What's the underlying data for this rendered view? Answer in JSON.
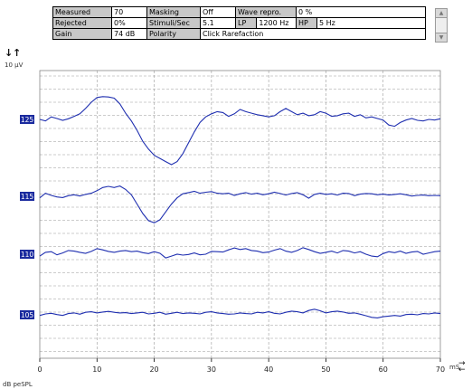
{
  "params": {
    "measured_label": "Measured",
    "measured_value": "70",
    "rejected_label": "Rejected",
    "rejected_value": "0%",
    "gain_label": "Gain",
    "gain_value": "74 dB",
    "masking_label": "Masking",
    "masking_value": "Off",
    "stimuli_label": "Stimuli/Sec",
    "stimuli_value": "5.1",
    "polarity_label": "Polarity",
    "polarity_value": "Click Rarefaction",
    "wave_label": "Wave repro.",
    "wave_value": "0 %",
    "lp_label": "LP",
    "lp_value": "1200 Hz",
    "hp_label": "HP",
    "hp_value": "5 Hz"
  },
  "scrollbar": {
    "up_icon": "scroll-up-arrow",
    "down_icon": "scroll-down-arrow"
  },
  "controls": {
    "scale_down_icon": "↓",
    "scale_up_icon": "↑"
  },
  "y_axis": {
    "scale_label": "10 µV"
  },
  "x_axis": {
    "unit_label": "mS",
    "db_label": "dB peSPL"
  },
  "chart_data": {
    "type": "line",
    "x_ticks": [
      0,
      10,
      20,
      30,
      40,
      50,
      60,
      70
    ],
    "x_tick_labels": [
      "0",
      "10",
      "20",
      "30",
      "40",
      "50",
      "60",
      "70"
    ],
    "xlim": [
      0,
      70
    ],
    "x_unit": "mS",
    "y_scale": "10 µV",
    "grid": true,
    "colors": {
      "trace": "#1f2fb0",
      "marker_bg": "#1a2a9e",
      "marker_text": "#ffffff",
      "grid": "#9a9a9a"
    },
    "series": [
      {
        "name": "125",
        "x": [
          0,
          1,
          2,
          3,
          4,
          5,
          6,
          7,
          8,
          9,
          10,
          11,
          12,
          13,
          14,
          15,
          16,
          17,
          18,
          19,
          20,
          21,
          22,
          23,
          24,
          25,
          26,
          27,
          28,
          29,
          30,
          31,
          32,
          33,
          34,
          35,
          36,
          37,
          38,
          39,
          40,
          41,
          42,
          43,
          44,
          45,
          46,
          47,
          48,
          49,
          50,
          51,
          52,
          53,
          54,
          55,
          56,
          57,
          58,
          59,
          60,
          61,
          62,
          63,
          64,
          65,
          66,
          67,
          68,
          69,
          70
        ],
        "y": [
          0.0,
          -0.5,
          0.8,
          0.3,
          -0.3,
          0.2,
          1.0,
          1.8,
          3.5,
          5.5,
          7.0,
          7.3,
          7.2,
          6.8,
          5.0,
          2.0,
          -0.5,
          -3.5,
          -7.0,
          -9.5,
          -11.5,
          -12.5,
          -13.5,
          -14.5,
          -13.5,
          -11.0,
          -7.5,
          -4.0,
          -1.0,
          0.8,
          1.8,
          2.5,
          2.2,
          1.0,
          1.8,
          3.2,
          2.5,
          2.0,
          1.5,
          1.2,
          0.8,
          1.2,
          2.5,
          3.5,
          2.5,
          1.5,
          2.0,
          1.2,
          1.5,
          2.5,
          2.0,
          1.0,
          1.2,
          1.8,
          2.0,
          1.0,
          1.5,
          0.5,
          0.8,
          0.3,
          -0.2,
          -1.8,
          -2.2,
          -1.0,
          -0.2,
          0.3,
          -0.3,
          -0.5,
          0.0,
          -0.2,
          0.2
        ]
      },
      {
        "name": "115",
        "x": [
          0,
          1,
          2,
          3,
          4,
          5,
          6,
          7,
          8,
          9,
          10,
          11,
          12,
          13,
          14,
          15,
          16,
          17,
          18,
          19,
          20,
          21,
          22,
          23,
          24,
          25,
          26,
          27,
          28,
          29,
          30,
          31,
          32,
          33,
          34,
          35,
          36,
          37,
          38,
          39,
          40,
          41,
          42,
          43,
          44,
          45,
          46,
          47,
          48,
          49,
          50,
          51,
          52,
          53,
          54,
          55,
          56,
          57,
          58,
          59,
          60,
          61,
          62,
          63,
          64,
          65,
          66,
          67,
          68,
          69,
          70
        ],
        "y": [
          -0.5,
          1.0,
          0.3,
          -0.2,
          -0.4,
          0.2,
          0.5,
          0.1,
          0.6,
          1.0,
          1.8,
          2.8,
          3.2,
          2.8,
          3.3,
          2.2,
          0.5,
          -2.5,
          -5.5,
          -7.8,
          -8.5,
          -7.5,
          -5.0,
          -2.5,
          -0.5,
          0.8,
          1.2,
          1.6,
          1.0,
          1.3,
          1.5,
          1.0,
          0.8,
          1.0,
          0.3,
          0.8,
          1.2,
          0.7,
          1.0,
          0.5,
          0.8,
          1.3,
          0.9,
          0.4,
          0.9,
          1.2,
          0.5,
          -0.6,
          0.6,
          1.0,
          0.6,
          0.8,
          0.4,
          1.0,
          0.9,
          0.2,
          0.7,
          0.9,
          0.8,
          0.5,
          0.7,
          0.4,
          0.6,
          0.8,
          0.5,
          0.1,
          0.3,
          0.4,
          0.2,
          0.3,
          0.2
        ]
      },
      {
        "name": "110",
        "x": [
          0,
          1,
          2,
          3,
          4,
          5,
          6,
          7,
          8,
          9,
          10,
          11,
          12,
          13,
          14,
          15,
          16,
          17,
          18,
          19,
          20,
          21,
          22,
          23,
          24,
          25,
          26,
          27,
          28,
          29,
          30,
          31,
          32,
          33,
          34,
          35,
          36,
          37,
          38,
          39,
          40,
          41,
          42,
          43,
          44,
          45,
          46,
          47,
          48,
          49,
          50,
          51,
          52,
          53,
          54,
          55,
          56,
          57,
          58,
          59,
          60,
          61,
          62,
          63,
          64,
          65,
          66,
          67,
          68,
          69,
          70
        ],
        "y": [
          -0.6,
          0.6,
          0.8,
          -0.2,
          0.4,
          1.2,
          1.0,
          0.6,
          0.3,
          0.9,
          1.8,
          1.4,
          0.9,
          0.6,
          1.0,
          1.2,
          0.8,
          1.0,
          0.5,
          0.2,
          0.8,
          0.3,
          -1.2,
          -0.6,
          0.0,
          -0.3,
          -0.1,
          0.4,
          -0.2,
          0.0,
          0.9,
          0.8,
          0.7,
          1.4,
          2.0,
          1.5,
          1.8,
          1.2,
          1.0,
          0.5,
          0.7,
          1.3,
          1.8,
          1.0,
          0.6,
          1.2,
          2.1,
          1.5,
          0.8,
          0.3,
          0.6,
          1.0,
          0.4,
          1.2,
          1.0,
          0.4,
          0.8,
          0.0,
          -0.6,
          -0.8,
          0.2,
          0.8,
          0.5,
          1.0,
          0.3,
          0.7,
          0.9,
          0.0,
          0.4,
          0.8,
          1.0
        ]
      },
      {
        "name": "105",
        "x": [
          0,
          1,
          2,
          3,
          4,
          5,
          6,
          7,
          8,
          9,
          10,
          11,
          12,
          13,
          14,
          15,
          16,
          17,
          18,
          19,
          20,
          21,
          22,
          23,
          24,
          25,
          26,
          27,
          28,
          29,
          30,
          31,
          32,
          33,
          34,
          35,
          36,
          37,
          38,
          39,
          40,
          41,
          42,
          43,
          44,
          45,
          46,
          47,
          48,
          49,
          50,
          51,
          52,
          53,
          54,
          55,
          56,
          57,
          58,
          59,
          60,
          61,
          62,
          63,
          64,
          65,
          66,
          67,
          68,
          69,
          70
        ],
        "y": [
          -0.2,
          0.3,
          0.5,
          0.1,
          -0.2,
          0.4,
          0.6,
          0.2,
          0.8,
          1.0,
          0.6,
          0.9,
          1.1,
          0.8,
          0.6,
          0.7,
          0.4,
          0.6,
          0.8,
          0.3,
          0.5,
          0.8,
          0.2,
          0.5,
          0.8,
          0.4,
          0.6,
          0.5,
          0.3,
          0.8,
          1.0,
          0.6,
          0.4,
          0.2,
          0.3,
          0.6,
          0.4,
          0.3,
          0.8,
          0.6,
          1.0,
          0.5,
          0.3,
          0.8,
          1.2,
          1.0,
          0.6,
          1.4,
          1.8,
          1.3,
          0.6,
          1.0,
          1.2,
          0.9,
          0.5,
          0.6,
          0.2,
          -0.3,
          -0.8,
          -1.0,
          -0.6,
          -0.4,
          -0.2,
          -0.4,
          0.1,
          0.2,
          0.0,
          0.4,
          0.3,
          0.6,
          0.4
        ]
      }
    ]
  }
}
